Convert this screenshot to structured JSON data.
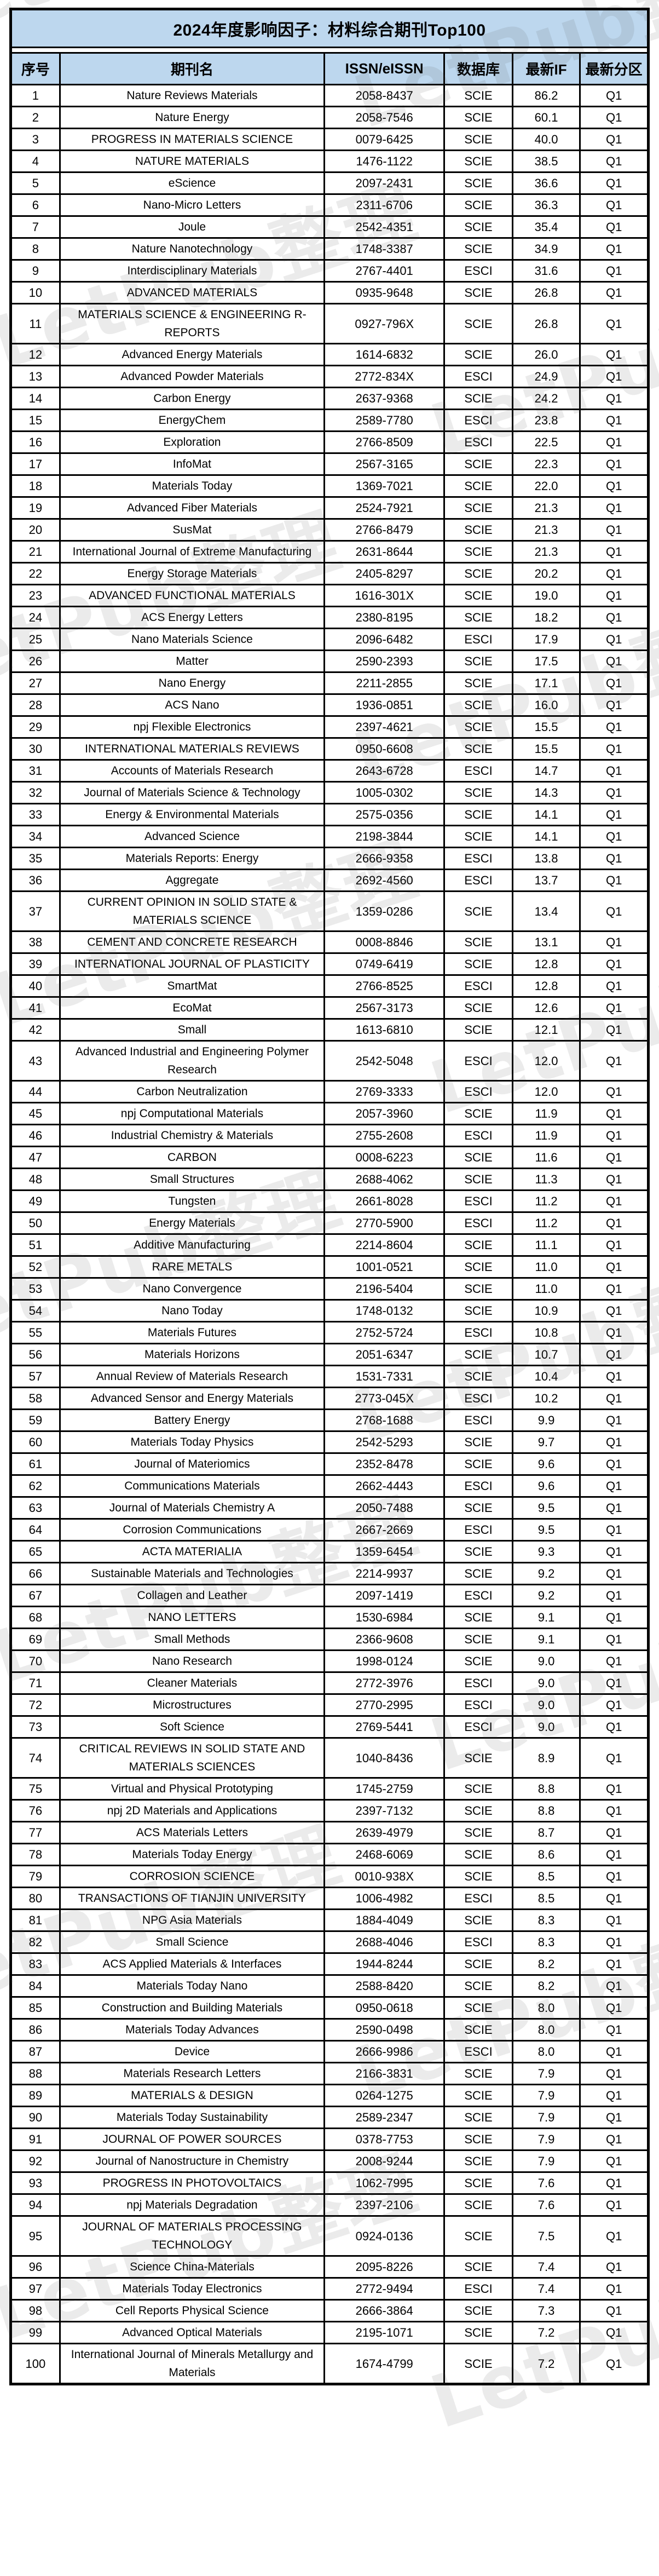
{
  "title": "2024年度影响因子：材料综合期刊Top100",
  "watermark_text": "LetPub整理",
  "colors": {
    "header_bg": "#BDD7EE",
    "border": "#000000",
    "page_bg": "#FFFFFF",
    "watermark": "rgba(70,70,70,0.11)"
  },
  "columns": [
    "序号",
    "期刊名",
    "ISSN/eISSN",
    "数据库",
    "最新IF",
    "最新分区"
  ],
  "rows": [
    [
      "1",
      "Nature Reviews Materials",
      "2058-8437",
      "SCIE",
      "86.2",
      "Q1"
    ],
    [
      "2",
      "Nature Energy",
      "2058-7546",
      "SCIE",
      "60.1",
      "Q1"
    ],
    [
      "3",
      "PROGRESS IN MATERIALS SCIENCE",
      "0079-6425",
      "SCIE",
      "40.0",
      "Q1"
    ],
    [
      "4",
      "NATURE MATERIALS",
      "1476-1122",
      "SCIE",
      "38.5",
      "Q1"
    ],
    [
      "5",
      "eScience",
      "2097-2431",
      "SCIE",
      "36.6",
      "Q1"
    ],
    [
      "6",
      "Nano-Micro Letters",
      "2311-6706",
      "SCIE",
      "36.3",
      "Q1"
    ],
    [
      "7",
      "Joule",
      "2542-4351",
      "SCIE",
      "35.4",
      "Q1"
    ],
    [
      "8",
      "Nature Nanotechnology",
      "1748-3387",
      "SCIE",
      "34.9",
      "Q1"
    ],
    [
      "9",
      "Interdisciplinary Materials",
      "2767-4401",
      "ESCI",
      "31.6",
      "Q1"
    ],
    [
      "10",
      "ADVANCED MATERIALS",
      "0935-9648",
      "SCIE",
      "26.8",
      "Q1"
    ],
    [
      "11",
      "MATERIALS SCIENCE & ENGINEERING R-REPORTS",
      "0927-796X",
      "SCIE",
      "26.8",
      "Q1"
    ],
    [
      "12",
      "Advanced Energy Materials",
      "1614-6832",
      "SCIE",
      "26.0",
      "Q1"
    ],
    [
      "13",
      "Advanced Powder Materials",
      "2772-834X",
      "ESCI",
      "24.9",
      "Q1"
    ],
    [
      "14",
      "Carbon Energy",
      "2637-9368",
      "SCIE",
      "24.2",
      "Q1"
    ],
    [
      "15",
      "EnergyChem",
      "2589-7780",
      "ESCI",
      "23.8",
      "Q1"
    ],
    [
      "16",
      "Exploration",
      "2766-8509",
      "ESCI",
      "22.5",
      "Q1"
    ],
    [
      "17",
      "InfoMat",
      "2567-3165",
      "SCIE",
      "22.3",
      "Q1"
    ],
    [
      "18",
      "Materials Today",
      "1369-7021",
      "SCIE",
      "22.0",
      "Q1"
    ],
    [
      "19",
      "Advanced Fiber Materials",
      "2524-7921",
      "SCIE",
      "21.3",
      "Q1"
    ],
    [
      "20",
      "SusMat",
      "2766-8479",
      "SCIE",
      "21.3",
      "Q1"
    ],
    [
      "21",
      "International Journal of Extreme Manufacturing",
      "2631-8644",
      "SCIE",
      "21.3",
      "Q1"
    ],
    [
      "22",
      "Energy Storage Materials",
      "2405-8297",
      "SCIE",
      "20.2",
      "Q1"
    ],
    [
      "23",
      "ADVANCED FUNCTIONAL MATERIALS",
      "1616-301X",
      "SCIE",
      "19.0",
      "Q1"
    ],
    [
      "24",
      "ACS Energy Letters",
      "2380-8195",
      "SCIE",
      "18.2",
      "Q1"
    ],
    [
      "25",
      "Nano Materials Science",
      "2096-6482",
      "ESCI",
      "17.9",
      "Q1"
    ],
    [
      "26",
      "Matter",
      "2590-2393",
      "SCIE",
      "17.5",
      "Q1"
    ],
    [
      "27",
      "Nano Energy",
      "2211-2855",
      "SCIE",
      "17.1",
      "Q1"
    ],
    [
      "28",
      "ACS Nano",
      "1936-0851",
      "SCIE",
      "16.0",
      "Q1"
    ],
    [
      "29",
      "npj Flexible Electronics",
      "2397-4621",
      "SCIE",
      "15.5",
      "Q1"
    ],
    [
      "30",
      "INTERNATIONAL MATERIALS REVIEWS",
      "0950-6608",
      "SCIE",
      "15.5",
      "Q1"
    ],
    [
      "31",
      "Accounts of Materials Research",
      "2643-6728",
      "ESCI",
      "14.7",
      "Q1"
    ],
    [
      "32",
      "Journal of Materials Science & Technology",
      "1005-0302",
      "SCIE",
      "14.3",
      "Q1"
    ],
    [
      "33",
      "Energy & Environmental Materials",
      "2575-0356",
      "SCIE",
      "14.1",
      "Q1"
    ],
    [
      "34",
      "Advanced Science",
      "2198-3844",
      "SCIE",
      "14.1",
      "Q1"
    ],
    [
      "35",
      "Materials Reports: Energy",
      "2666-9358",
      "ESCI",
      "13.8",
      "Q1"
    ],
    [
      "36",
      "Aggregate",
      "2692-4560",
      "ESCI",
      "13.7",
      "Q1"
    ],
    [
      "37",
      "CURRENT OPINION IN SOLID STATE & MATERIALS SCIENCE",
      "1359-0286",
      "SCIE",
      "13.4",
      "Q1"
    ],
    [
      "38",
      "CEMENT AND CONCRETE RESEARCH",
      "0008-8846",
      "SCIE",
      "13.1",
      "Q1"
    ],
    [
      "39",
      "INTERNATIONAL JOURNAL OF PLASTICITY",
      "0749-6419",
      "SCIE",
      "12.8",
      "Q1"
    ],
    [
      "40",
      "SmartMat",
      "2766-8525",
      "ESCI",
      "12.8",
      "Q1"
    ],
    [
      "41",
      "EcoMat",
      "2567-3173",
      "SCIE",
      "12.6",
      "Q1"
    ],
    [
      "42",
      "Small",
      "1613-6810",
      "SCIE",
      "12.1",
      "Q1"
    ],
    [
      "43",
      "Advanced Industrial and Engineering Polymer Research",
      "2542-5048",
      "ESCI",
      "12.0",
      "Q1"
    ],
    [
      "44",
      "Carbon Neutralization",
      "2769-3333",
      "ESCI",
      "12.0",
      "Q1"
    ],
    [
      "45",
      "npj Computational Materials",
      "2057-3960",
      "SCIE",
      "11.9",
      "Q1"
    ],
    [
      "46",
      "Industrial Chemistry & Materials",
      "2755-2608",
      "ESCI",
      "11.9",
      "Q1"
    ],
    [
      "47",
      "CARBON",
      "0008-6223",
      "SCIE",
      "11.6",
      "Q1"
    ],
    [
      "48",
      "Small Structures",
      "2688-4062",
      "SCIE",
      "11.3",
      "Q1"
    ],
    [
      "49",
      "Tungsten",
      "2661-8028",
      "ESCI",
      "11.2",
      "Q1"
    ],
    [
      "50",
      "Energy Materials",
      "2770-5900",
      "ESCI",
      "11.2",
      "Q1"
    ],
    [
      "51",
      "Additive Manufacturing",
      "2214-8604",
      "SCIE",
      "11.1",
      "Q1"
    ],
    [
      "52",
      "RARE METALS",
      "1001-0521",
      "SCIE",
      "11.0",
      "Q1"
    ],
    [
      "53",
      "Nano Convergence",
      "2196-5404",
      "SCIE",
      "11.0",
      "Q1"
    ],
    [
      "54",
      "Nano Today",
      "1748-0132",
      "SCIE",
      "10.9",
      "Q1"
    ],
    [
      "55",
      "Materials Futures",
      "2752-5724",
      "ESCI",
      "10.8",
      "Q1"
    ],
    [
      "56",
      "Materials Horizons",
      "2051-6347",
      "SCIE",
      "10.7",
      "Q1"
    ],
    [
      "57",
      "Annual Review of Materials Research",
      "1531-7331",
      "SCIE",
      "10.4",
      "Q1"
    ],
    [
      "58",
      "Advanced Sensor and Energy Materials",
      "2773-045X",
      "ESCI",
      "10.2",
      "Q1"
    ],
    [
      "59",
      "Battery Energy",
      "2768-1688",
      "ESCI",
      "9.9",
      "Q1"
    ],
    [
      "60",
      "Materials Today Physics",
      "2542-5293",
      "SCIE",
      "9.7",
      "Q1"
    ],
    [
      "61",
      "Journal of Materiomics",
      "2352-8478",
      "SCIE",
      "9.6",
      "Q1"
    ],
    [
      "62",
      "Communications Materials",
      "2662-4443",
      "ESCI",
      "9.6",
      "Q1"
    ],
    [
      "63",
      "Journal of Materials Chemistry A",
      "2050-7488",
      "SCIE",
      "9.5",
      "Q1"
    ],
    [
      "64",
      "Corrosion Communications",
      "2667-2669",
      "ESCI",
      "9.5",
      "Q1"
    ],
    [
      "65",
      "ACTA MATERIALIA",
      "1359-6454",
      "SCIE",
      "9.3",
      "Q1"
    ],
    [
      "66",
      "Sustainable Materials and Technologies",
      "2214-9937",
      "SCIE",
      "9.2",
      "Q1"
    ],
    [
      "67",
      "Collagen and Leather",
      "2097-1419",
      "ESCI",
      "9.2",
      "Q1"
    ],
    [
      "68",
      "NANO LETTERS",
      "1530-6984",
      "SCIE",
      "9.1",
      "Q1"
    ],
    [
      "69",
      "Small Methods",
      "2366-9608",
      "SCIE",
      "9.1",
      "Q1"
    ],
    [
      "70",
      "Nano Research",
      "1998-0124",
      "SCIE",
      "9.0",
      "Q1"
    ],
    [
      "71",
      "Cleaner Materials",
      "2772-3976",
      "ESCI",
      "9.0",
      "Q1"
    ],
    [
      "72",
      "Microstructures",
      "2770-2995",
      "ESCI",
      "9.0",
      "Q1"
    ],
    [
      "73",
      "Soft Science",
      "2769-5441",
      "ESCI",
      "9.0",
      "Q1"
    ],
    [
      "74",
      "CRITICAL REVIEWS IN SOLID STATE AND MATERIALS SCIENCES",
      "1040-8436",
      "SCIE",
      "8.9",
      "Q1"
    ],
    [
      "75",
      "Virtual and Physical Prototyping",
      "1745-2759",
      "SCIE",
      "8.8",
      "Q1"
    ],
    [
      "76",
      "npj 2D Materials and Applications",
      "2397-7132",
      "SCIE",
      "8.8",
      "Q1"
    ],
    [
      "77",
      "ACS Materials Letters",
      "2639-4979",
      "SCIE",
      "8.7",
      "Q1"
    ],
    [
      "78",
      "Materials Today Energy",
      "2468-6069",
      "SCIE",
      "8.6",
      "Q1"
    ],
    [
      "79",
      "CORROSION SCIENCE",
      "0010-938X",
      "SCIE",
      "8.5",
      "Q1"
    ],
    [
      "80",
      "TRANSACTIONS OF TIANJIN UNIVERSITY",
      "1006-4982",
      "ESCI",
      "8.5",
      "Q1"
    ],
    [
      "81",
      "NPG Asia Materials",
      "1884-4049",
      "SCIE",
      "8.3",
      "Q1"
    ],
    [
      "82",
      "Small Science",
      "2688-4046",
      "ESCI",
      "8.3",
      "Q1"
    ],
    [
      "83",
      "ACS Applied Materials & Interfaces",
      "1944-8244",
      "SCIE",
      "8.2",
      "Q1"
    ],
    [
      "84",
      "Materials Today Nano",
      "2588-8420",
      "SCIE",
      "8.2",
      "Q1"
    ],
    [
      "85",
      "Construction and Building Materials",
      "0950-0618",
      "SCIE",
      "8.0",
      "Q1"
    ],
    [
      "86",
      "Materials Today Advances",
      "2590-0498",
      "SCIE",
      "8.0",
      "Q1"
    ],
    [
      "87",
      "Device",
      "2666-9986",
      "ESCI",
      "8.0",
      "Q1"
    ],
    [
      "88",
      "Materials Research Letters",
      "2166-3831",
      "SCIE",
      "7.9",
      "Q1"
    ],
    [
      "89",
      "MATERIALS & DESIGN",
      "0264-1275",
      "SCIE",
      "7.9",
      "Q1"
    ],
    [
      "90",
      "Materials Today Sustainability",
      "2589-2347",
      "SCIE",
      "7.9",
      "Q1"
    ],
    [
      "91",
      "JOURNAL OF POWER SOURCES",
      "0378-7753",
      "SCIE",
      "7.9",
      "Q1"
    ],
    [
      "92",
      "Journal of Nanostructure in Chemistry",
      "2008-9244",
      "SCIE",
      "7.9",
      "Q1"
    ],
    [
      "93",
      "PROGRESS IN PHOTOVOLTAICS",
      "1062-7995",
      "SCIE",
      "7.6",
      "Q1"
    ],
    [
      "94",
      "npj Materials Degradation",
      "2397-2106",
      "SCIE",
      "7.6",
      "Q1"
    ],
    [
      "95",
      "JOURNAL OF MATERIALS PROCESSING TECHNOLOGY",
      "0924-0136",
      "SCIE",
      "7.5",
      "Q1"
    ],
    [
      "96",
      "Science China-Materials",
      "2095-8226",
      "SCIE",
      "7.4",
      "Q1"
    ],
    [
      "97",
      "Materials Today Electronics",
      "2772-9494",
      "ESCI",
      "7.4",
      "Q1"
    ],
    [
      "98",
      "Cell Reports Physical Science",
      "2666-3864",
      "SCIE",
      "7.3",
      "Q1"
    ],
    [
      "99",
      "Advanced Optical Materials",
      "2195-1071",
      "SCIE",
      "7.2",
      "Q1"
    ],
    [
      "100",
      "International Journal of Minerals Metallurgy and Materials",
      "1674-4799",
      "SCIE",
      "7.2",
      "Q1"
    ]
  ]
}
